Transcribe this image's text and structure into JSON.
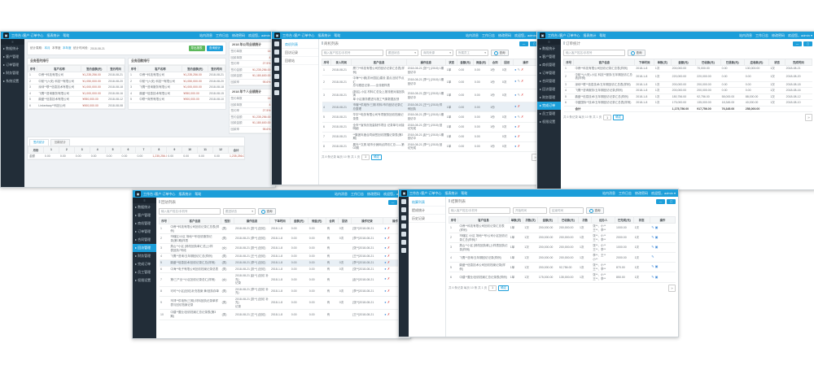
{
  "accent_color": "#1c9ed9",
  "sidebar_color": "#222d38",
  "nav": {
    "logo_glyph": "▣",
    "left": [
      "工作台 /客户 订单中心",
      "报表统计",
      "帮助"
    ],
    "right": [
      "站内消息",
      "工作日志",
      "修改密码",
      "欢迎您，admin ▾"
    ],
    "toggle_glyph": "≡"
  },
  "corner": [
    "—",
    "▢"
  ],
  "icon_map": {
    "u": {
      "name": "user-icon",
      "glyph": "●",
      "color": "#4a90d9"
    },
    "e": {
      "name": "edit-icon",
      "glyph": "✎",
      "color": "#98a1a8"
    },
    "d": {
      "name": "delete-icon",
      "glyph": "✗",
      "color": "#e25856"
    },
    "p": {
      "name": "edit-icon",
      "glyph": "✎",
      "color": "#4a90d9"
    },
    "c": {
      "name": "copy-icon",
      "glyph": "▣",
      "color": "#4a90d9"
    }
  },
  "w1": {
    "sidebar": [
      {
        "label": "▸ 数据统计",
        "active": false
      },
      {
        "label": "▸ 客户管理",
        "active": false
      },
      {
        "label": "▸ 订单管理",
        "active": false
      },
      {
        "label": "▸ 财务管理",
        "active": false
      },
      {
        "label": "▸ 系统设置",
        "active": false
      }
    ],
    "filter": {
      "period_label": "统计周期:",
      "opt_month": "本月",
      "opt_quarter": "本季度",
      "opt_year": "本年度",
      "range_label": "统计时间段:",
      "range_value": "2018-08-21",
      "btn_export": "导出报表",
      "btn_query": "查询统计"
    },
    "rank_head": [
      "序号",
      "客户名称",
      "签约金额(元)",
      "签约时间"
    ],
    "rank_a": {
      "title": "业务签约排行",
      "rows": [
        [
          "1",
          "中睿**科技有限公司",
          "¥1,235,256.00",
          "2018-08-21"
        ],
        [
          "2",
          "中航**(六安) 科技**有限公司",
          "¥1,050,000.00",
          "2018-08-20"
        ],
        [
          "3",
          "深圳**联**信息技术有限公司",
          "¥1,000,000.00",
          "2018-08-18"
        ],
        [
          "4",
          "飞鹰**咨询服务有限公司",
          "¥1,000,000.00",
          "2018-08-16"
        ],
        [
          "5",
          "鼎盛**信息技术有限公司",
          "¥950,000.00",
          "2018-08-12"
        ],
        [
          "6",
          "Linkedway**科技公司",
          "¥900,000.00",
          "2018-08-08"
        ]
      ]
    },
    "rank_b": {
      "title": "业务回款排行",
      "rows": [
        [
          "1",
          "中睿**科技有限公司",
          "¥1,235,256.00",
          "2018-08-21"
        ],
        [
          "2",
          "中航**(六安) 科技**有限公司",
          "¥1,050,000.00",
          "2018-08-20"
        ],
        [
          "3",
          "飞鹰**咨询服务有限公司",
          "¥1,000,000.00",
          "2018-08-18"
        ],
        [
          "4",
          "鼎盛**信息技术有限公司",
          "¥950,000.00",
          "2018-08-15"
        ],
        [
          "5",
          "中联**商贸有限公司",
          "¥900,000.00",
          "2018-08-10"
        ]
      ]
    },
    "stats_a": {
      "title": "2018 年公司业绩统计",
      "rows": [
        [
          "签约单数",
          "14"
        ],
        [
          "回款单数",
          "4"
        ],
        [
          "签约率",
          "27.5%"
        ],
        [
          "签约金额",
          "¥1,235,256.00"
        ],
        [
          "回款金额",
          "¥1,180,600.00"
        ],
        [
          "回款率",
          "95.6%"
        ]
      ]
    },
    "stats_b": {
      "title": "2018 年个人业绩统计",
      "rows": [
        [
          "签约单数",
          "14"
        ],
        [
          "回款单数",
          "4"
        ],
        [
          "签约率",
          "27.5%"
        ],
        [
          "签约金额",
          "¥1,235,256.00"
        ],
        [
          "回款金额",
          "¥1,180,600.00"
        ],
        [
          "回款率",
          "95.6%"
        ]
      ]
    },
    "tabs": [
      "签约统计",
      "回款统计"
    ],
    "months_head": [
      "月份",
      "1",
      "2",
      "3",
      "4",
      "5",
      "6",
      "7",
      "8",
      "9",
      "10",
      "11",
      "12",
      "合计"
    ],
    "months_rows": [
      [
        "金额",
        "0.00",
        "0.00",
        "0.00",
        "0.00",
        "0.00",
        "0.00",
        "0.00",
        "1,235,256.00",
        "0.00",
        "0.00",
        "0.00",
        "0.00",
        "1,235,256.00"
      ]
    ]
  },
  "w2": {
    "rail": [
      {
        "name": "menu-icon"
      },
      {
        "name": "user-icon"
      },
      {
        "name": "briefcase-icon"
      },
      {
        "name": "file-icon"
      },
      {
        "name": "chart-icon"
      },
      {
        "name": "bell-icon"
      },
      {
        "name": "gear-icon"
      }
    ],
    "submenu": [
      {
        "label": "商机列表",
        "active": true
      },
      {
        "label": "回访记录",
        "active": false
      },
      {
        "label": "回收站",
        "active": false
      }
    ],
    "title": "商机列表",
    "filter": {
      "keyword_placeholder": "输入客户姓名/手机号",
      "selects": [
        "跟进状态",
        "商机来源",
        "所属员工"
      ],
      "search_label": "查询"
    },
    "head": [
      "序号",
      "录入时间",
      "客户信息",
      "操作信息",
      "状态",
      "金额(元)",
      "佣金(元)",
      "合同",
      "回访",
      "操作"
    ],
    "rows": [
      [
        "1",
        "2018-08-21",
        "厦门**科技有限公司的回访记录汇总表(样例)",
        "2018-08-21 [张**] (2018) 1期回访中",
        "1单",
        "0.00",
        "0.00",
        "1份",
        "0次",
        "#i:u,e,d"
      ],
      [
        "2",
        "2018-08-21",
        "中海**小微(苏州园区)建设 重点,回访节点汇\n总与跟进记录——全流程样表",
        "2018-08-21 [李**] (2018) 1期回访中",
        "1单",
        "0.00",
        "0.00",
        "1份",
        "0次",
        "#i:u,e,d"
      ],
      [
        "3",
        "2018-08-21",
        "[新区]-小区 材料汇总及上报流程对接回执清\n单 小区服务跟进与施工气象数据反馈",
        "2018-08-21 [张**] (2018) 1期回访中",
        "1单",
        "0.00",
        "0.00",
        "1份",
        "0次",
        "#i:u,e,d"
      ],
      [
        "4",
        "2018-08-21",
        "市辖**供电所/三期 材料/市内回访记录汇总整理",
        "2018-08-21 [王**] (2018) 样例回执",
        "1单",
        "0.00",
        "0.00",
        "1份",
        "",
        "#i:u,d"
      ],
      [
        "5",
        "2018-08-21",
        "华宇**电务有限公司专项服务回访档案记录表",
        "2018-08-21 [李**] (2018) 1期回访中",
        "1单",
        "0.00",
        "0.00",
        "1份",
        "0次",
        "#i:u,e,d"
      ],
      [
        "6",
        "2018-08-21",
        "全市**宣传页批量制作项目 记录单与对接明细",
        "2018-08-21 [张**] (2018) 回访完成",
        "1单",
        "0.00",
        "0.00",
        "1份",
        "0次",
        "#i:u,d"
      ],
      [
        "7",
        "2018-08-21",
        "**集团年度合同续签回访提醒记录表(第2期)",
        "2018-08-21 [赵**] (2018) 1期回访中",
        "1单",
        "0.00",
        "0.00",
        "",
        "0次",
        "#i:u,d"
      ],
      [
        "8",
        "2018-08-21",
        "晨光**文具 城市分销网点拜访汇总——第02期",
        "2018-08-21 [李**] (2018) 回访完成",
        "1单",
        "0.00",
        "0.00",
        "1份",
        "0次",
        "#i:u,d"
      ]
    ],
    "pagination": {
      "summary": "共 8 条记录 每页 10 条 共 1 页",
      "page": "1",
      "ok": "确定",
      "next": "»"
    }
  },
  "w3": {
    "sidebar": [
      {
        "label": "▸ 数据统计",
        "active": false
      },
      {
        "label": "▸ 客户管理",
        "active": false
      },
      {
        "label": "▸ 商机管理",
        "active": false
      },
      {
        "label": "▸ 订单管理",
        "active": false
      },
      {
        "label": "▸ 合同管理",
        "active": false
      },
      {
        "label": "▸ 回访管理",
        "active": false
      },
      {
        "label": "▸ 财务管理",
        "active": false
      },
      {
        "label": "▸ 完成订单",
        "active": true
      },
      {
        "label": "▸ 员工管理",
        "active": false
      },
      {
        "label": "▸ 权限设置",
        "active": false
      }
    ],
    "title": "订单统计",
    "filter": {
      "keyword_placeholder": "输入客户姓名/手机号",
      "search_label": "查询"
    },
    "head": [
      "序号",
      "客户信息",
      "下单时间",
      "单数(次)",
      "金额(元)",
      "已收款(元)",
      "已退款(元)",
      "应收款(元)",
      "状态",
      "完成时间"
    ],
    "rows": [
      [
        "1",
        "中睿**科技有限公司回访记录汇总表(样例)",
        "2018-1-8",
        "1次",
        "200,000.00",
        "70,000.00",
        "0.00",
        "130,000.00",
        "1次",
        "2018-08-21"
      ],
      [
        "2",
        "中航**(六安)-小区 科技**服务/五年期回访汇总表(样例)",
        "2018-1-8",
        "1次",
        "220,000.00",
        "220,000.00",
        "0.00",
        "0.00",
        "1次",
        "2018-08-20"
      ],
      [
        "3",
        "深圳**联**信息技术/五年期回访汇总表(样例)",
        "2018-1-8",
        "1次",
        "200,000.00",
        "200,000.00",
        "0.00",
        "0.00",
        "1次",
        "2018-08-18"
      ],
      [
        "4",
        "飞鹰**咨询服务/五年期回访记录(样例)",
        "2018-1-8",
        "1次",
        "200,000.00",
        "200,000.00",
        "0.00",
        "0.00",
        "1次",
        "2018-08-16"
      ],
      [
        "5",
        "鼎盛**信息技术/五年期回访记录汇总(样例)",
        "2018-1-8",
        "1次",
        "180,756.00",
        "92,756.00",
        "58,000.00",
        "88,000.00",
        "1次",
        "2018-08-12"
      ],
      [
        "6",
        "中盛国际**技术/五年期回访记录汇总表(样例)",
        "2018-1-8",
        "1次",
        "175,000.00",
        "135,000.00",
        "18,345.00",
        "40,000.00",
        "1次",
        "2018-08-10"
      ],
      [
        "",
        "合计",
        "",
        "",
        "1,175,756.00",
        "917,756.00",
        "76,345.00",
        "258,000.00",
        "",
        ""
      ]
    ],
    "pagination": {
      "summary": "共 6 条记录 每页 10 条 共 1 页",
      "page": "1",
      "ok": "确定",
      "next": "»"
    }
  },
  "w4": {
    "sidebar": [
      {
        "label": "▸ 数据统计",
        "active": false
      },
      {
        "label": "▸ 客户管理",
        "active": false
      },
      {
        "label": "▸ 商机管理",
        "active": false
      },
      {
        "label": "▸ 订单管理",
        "active": false
      },
      {
        "label": "▸ 合同管理",
        "active": false
      },
      {
        "label": "▸ 回访管理",
        "active": true
      },
      {
        "label": "▸ 财务管理",
        "active": false
      },
      {
        "label": "▸ 完成订单",
        "active": false
      },
      {
        "label": "▸ 员工管理",
        "active": false
      },
      {
        "label": "▸ 权限设置",
        "active": false
      }
    ],
    "title": "回访列表",
    "filter": {
      "keyword_placeholder": "输入客户姓名/手机号",
      "selects": [
        "跟进状态"
      ],
      "search_label": "查询"
    },
    "head": [
      "序号",
      "客户信息",
      "性别",
      "操作信息",
      "下单时间",
      "金额(元)",
      "佣金(元)",
      "合同",
      "回访",
      "操作记录",
      "操作"
    ],
    "rows": [
      [
        "1",
        "中睿**科技有限公司回访记录汇总表(样例)",
        "(男)",
        "2018-08-21 [张**] (回访)",
        "2018-1-8",
        "0.00",
        "0.00",
        "有",
        "0次",
        "[张**]2018-08-21",
        "#i:u,d"
      ],
      [
        "2",
        "市辖区/小区 场地**号/回访服务记\n录(第2期)样表",
        "(男)",
        "2018-08-21 [李**] (回访)",
        "2018-1-8",
        "0.00",
        "0.00",
        "有",
        "0次",
        "[李**]2018-08-21",
        "#i:u,d"
      ],
      [
        "3",
        "燕山**小区 [修改回执单汇总]上/样\n表回执7号段",
        "(女)",
        "2018-08-21 [张**] (回访)",
        "2018-1-8",
        "0.00",
        "0.00",
        "有",
        "",
        "[张**]2018-08-21",
        "#i:u,d"
      ],
      [
        "4",
        "飞鹰**咨询/五年期回访汇总(样例)",
        "(男)",
        "2018-08-21 [王**] (回访)",
        "2018-1-8",
        "0.00",
        "0.00",
        "有",
        "",
        "[王**]2018-08-21",
        "#i:u,d"
      ],
      [
        "5",
        "鼎盛**信息技术/回访记录汇总(样例)",
        "(男)",
        "2018-08-21 [李**] (回访)",
        "2018-1-8",
        "0.00",
        "0.00",
        "有",
        "0次",
        "[李**]2018-08-21",
        "#i:u,d"
      ],
      [
        "6",
        "中海**电子有限公司回访档案记录总表",
        "(男)",
        "2018-08-21 [张**] (回访)",
        "2018-1-8",
        "0.00",
        "0.00",
        "有",
        "0次",
        "[张**]2018-08-21",
        "#i:u,d"
      ],
      [
        "7",
        "第/三产业**小区回访记录总汇(样例)",
        "(女)",
        "2018-08-21 [赵**] (回访 补充)\n记录",
        "2018-1-8",
        "0.00",
        "0.00",
        "有",
        "",
        "[赵**]2018-08-21",
        "#i:u,d"
      ],
      [
        "8",
        "可可**小区(回访)补充档案 黄/回执存单",
        "(男)",
        "2018-08-21 [李**] (回访 补充)",
        "2018-1-8",
        "0.00",
        "0.00",
        "有",
        "0次",
        "[李**]2018-08-21",
        "#i:u,d"
      ],
      [
        "9",
        "市郊**供电所(三期) 材料回执记录单样\n表与回访档案记录",
        "(男)",
        "2018-08-21 [张**] (回访 补充)\n记录",
        "2018-1-8",
        "0.00",
        "0.00",
        "有",
        "0次",
        "[张**]2018-08-21",
        "#i:u,d"
      ],
      [
        "10",
        "中建**置业/回访档案汇总记录表(第3\n期)",
        "(男)",
        "2018-08-21 [王**] (回访)",
        "2018-1-8",
        "0.00",
        "0.00",
        "有",
        "",
        "[王**]2018-08-21",
        "#i:u,d"
      ]
    ],
    "pagination": {
      "summary": "共 10 条记录 每页 10 条 共 1 页",
      "page": "1",
      "ok": "确定",
      "next": "»"
    }
  },
  "w5": {
    "rail": [
      {
        "name": "menu-icon"
      },
      {
        "name": "user-icon"
      },
      {
        "name": "briefcase-icon"
      },
      {
        "name": "file-icon"
      },
      {
        "name": "chart-icon"
      },
      {
        "name": "bell-icon"
      },
      {
        "name": "gear-icon"
      }
    ],
    "submenu": [
      {
        "label": "结算列表",
        "active": true
      },
      {
        "label": "提成统计",
        "active": false
      },
      {
        "label": "历史记录",
        "active": false
      }
    ],
    "title": "结算列表",
    "filter": {
      "keyword_placeholder": "输入客户姓名/手机号",
      "date_start": "开始时间",
      "date_end": "结束时间",
      "search_label": "查询"
    },
    "head": [
      "序号",
      "客户信息",
      "单数(次)",
      "次数(次)",
      "金额(元)",
      "已收款(元)",
      "次数",
      "经办人",
      "已完成(元)",
      "状态",
      "操作"
    ],
    "rows": [
      [
        "1",
        "中睿**科技有限公司回访记录汇总表(样例)",
        "1单",
        "1次",
        "200,000.00",
        "200,000.00",
        "1次",
        "张**、小**\n王**、李**",
        "1000.00",
        "1次",
        "#i:p,c"
      ],
      [
        "2",
        "市辖区 /小区 场地**号/公司小区回访记录汇总(样例)7",
        "1单",
        "1次",
        "200,000.00",
        "200,000.00",
        "1次",
        "张**、小**\n王**、李**",
        "2000.00",
        "1次",
        "#i:p,c"
      ],
      [
        "3",
        "燕山**小区 [修改回执单]上/样表回执记录(样例)",
        "1单",
        "1次",
        "200,000.00",
        "200,000.00",
        "1次",
        "张**、小**\n王**、李**",
        "1000.00",
        "1次",
        "#i:p,c"
      ],
      [
        "4",
        "飞鹰**咨询/五年期回访记录(样例)",
        "1单",
        "1次",
        "200,000.00",
        "200,000.00",
        "1次",
        "李**、王**\n小**",
        "2000.00",
        "1次",
        "#i:p"
      ],
      [
        "5",
        "鼎盛**信息技术公司回访档案记录(样例)",
        "1单",
        "1次",
        "200,000.00",
        "92,756.00",
        "1次",
        "张**、小**\n王**、李**",
        "870.00",
        "1次",
        "#i:p,c"
      ],
      [
        "6",
        "中建**置业/回访档案汇总记录表(样例)",
        "1单",
        "1次",
        "175,000.00",
        "135,000.00",
        "1次",
        "张**、小**\n王**、李**",
        "850.00",
        "1次",
        "#i:p,c"
      ]
    ],
    "pagination": {
      "summary": "共 6 条记录 每页 10 条 共 1 页",
      "page": "1",
      "ok": "确定",
      "next": "»"
    }
  }
}
